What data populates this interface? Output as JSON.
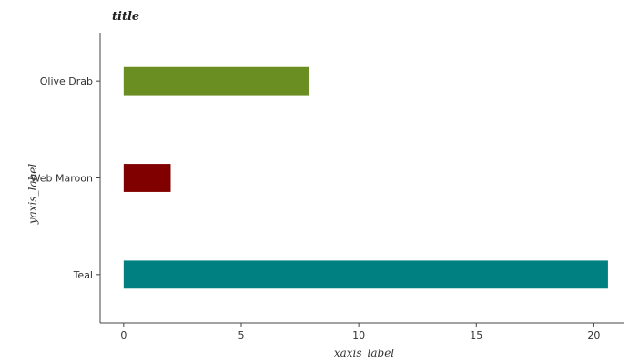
{
  "chart_data": {
    "type": "bar",
    "orientation": "horizontal",
    "title": "title",
    "xlabel": "xaxis_label",
    "ylabel": "yaxis_label",
    "categories": [
      "Teal",
      "Web Maroon",
      "Olive Drab"
    ],
    "values": [
      20.6,
      2.0,
      7.9
    ],
    "colors": [
      "#008080",
      "#800000",
      "#6b8e23"
    ],
    "xlim": [
      -1,
      21.3
    ],
    "xticks": [
      0,
      5,
      10,
      15,
      20
    ],
    "xtick_labels": [
      "0",
      "5",
      "10",
      "15",
      "20"
    ],
    "grid": false,
    "legend": "none"
  }
}
